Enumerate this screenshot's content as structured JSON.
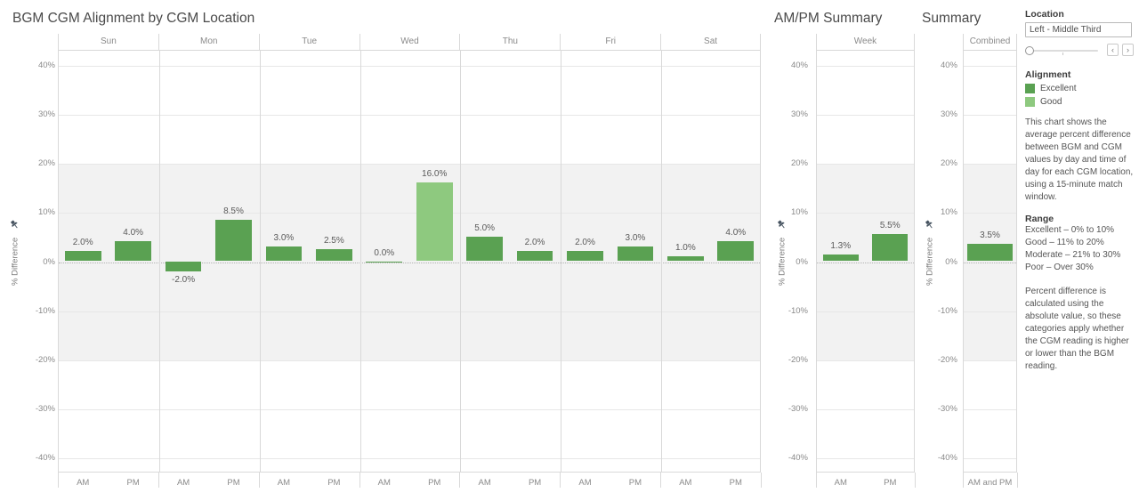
{
  "colors": {
    "Excellent": "#5aa152",
    "Good": "#8ec97f"
  },
  "chart_data": [
    {
      "type": "bar",
      "title": "BGM CGM Alignment by CGM Location",
      "ylabel": "% Difference",
      "ylim": [
        -43,
        43
      ],
      "yticks": [
        40,
        30,
        20,
        10,
        0,
        -10,
        -20,
        -30,
        -40
      ],
      "reference_band": [
        -20,
        20
      ],
      "grid": true,
      "panes": [
        {
          "header": "Sun",
          "bars": [
            {
              "category": "AM",
              "value": 2.0,
              "label": "2.0%",
              "alignment": "Excellent"
            },
            {
              "category": "PM",
              "value": 4.0,
              "label": "4.0%",
              "alignment": "Excellent"
            }
          ]
        },
        {
          "header": "Mon",
          "bars": [
            {
              "category": "AM",
              "value": -2.0,
              "label": "-2.0%",
              "alignment": "Excellent"
            },
            {
              "category": "PM",
              "value": 8.5,
              "label": "8.5%",
              "alignment": "Excellent"
            }
          ]
        },
        {
          "header": "Tue",
          "bars": [
            {
              "category": "AM",
              "value": 3.0,
              "label": "3.0%",
              "alignment": "Excellent"
            },
            {
              "category": "PM",
              "value": 2.5,
              "label": "2.5%",
              "alignment": "Excellent"
            }
          ]
        },
        {
          "header": "Wed",
          "bars": [
            {
              "category": "AM",
              "value": 0.0,
              "label": "0.0%",
              "alignment": "Excellent"
            },
            {
              "category": "PM",
              "value": 16.0,
              "label": "16.0%",
              "alignment": "Good"
            }
          ]
        },
        {
          "header": "Thu",
          "bars": [
            {
              "category": "AM",
              "value": 5.0,
              "label": "5.0%",
              "alignment": "Excellent"
            },
            {
              "category": "PM",
              "value": 2.0,
              "label": "2.0%",
              "alignment": "Excellent"
            }
          ]
        },
        {
          "header": "Fri",
          "bars": [
            {
              "category": "AM",
              "value": 2.0,
              "label": "2.0%",
              "alignment": "Excellent"
            },
            {
              "category": "PM",
              "value": 3.0,
              "label": "3.0%",
              "alignment": "Excellent"
            }
          ]
        },
        {
          "header": "Sat",
          "bars": [
            {
              "category": "AM",
              "value": 1.0,
              "label": "1.0%",
              "alignment": "Excellent"
            },
            {
              "category": "PM",
              "value": 4.0,
              "label": "4.0%",
              "alignment": "Excellent"
            }
          ]
        }
      ]
    },
    {
      "type": "bar",
      "title": "AM/PM Summary",
      "ylabel": "% Difference",
      "ylim": [
        -43,
        43
      ],
      "yticks": [
        40,
        30,
        20,
        10,
        0,
        -10,
        -20,
        -30,
        -40
      ],
      "reference_band": [
        -20,
        20
      ],
      "grid": true,
      "panes": [
        {
          "header": "Week",
          "bars": [
            {
              "category": "AM",
              "value": 1.3,
              "label": "1.3%",
              "alignment": "Excellent"
            },
            {
              "category": "PM",
              "value": 5.5,
              "label": "5.5%",
              "alignment": "Excellent"
            }
          ]
        }
      ]
    },
    {
      "type": "bar",
      "title": "Summary",
      "ylabel": "% Difference",
      "ylim": [
        -43,
        43
      ],
      "yticks": [
        40,
        30,
        20,
        10,
        0,
        -10,
        -20,
        -30,
        -40
      ],
      "reference_band": [
        -20,
        20
      ],
      "grid": true,
      "panes": [
        {
          "header": "Combined",
          "bars": [
            {
              "category": "AM and PM",
              "value": 3.5,
              "label": "3.5%",
              "alignment": "Excellent"
            }
          ]
        }
      ]
    }
  ],
  "panel": {
    "location": {
      "label": "Location",
      "value": "Left - Middle Third"
    },
    "slider": {
      "prev": "‹",
      "next": "›"
    },
    "legend": {
      "title": "Alignment",
      "items": [
        {
          "label": "Excellent",
          "color": "#5aa152"
        },
        {
          "label": "Good",
          "color": "#8ec97f"
        }
      ]
    },
    "description": "This chart shows the average percent difference between BGM and CGM values by day and time of day for each CGM location, using a 15-minute match window.",
    "range": {
      "title": "Range",
      "lines": [
        "Excellent – 0% to 10%",
        "Good – 11% to 20%",
        "Moderate – 21% to 30%",
        "Poor – Over 30%"
      ]
    },
    "note": "Percent difference is calculated using the absolute value, so these categories apply whether the CGM reading is higher or lower than the BGM reading."
  }
}
